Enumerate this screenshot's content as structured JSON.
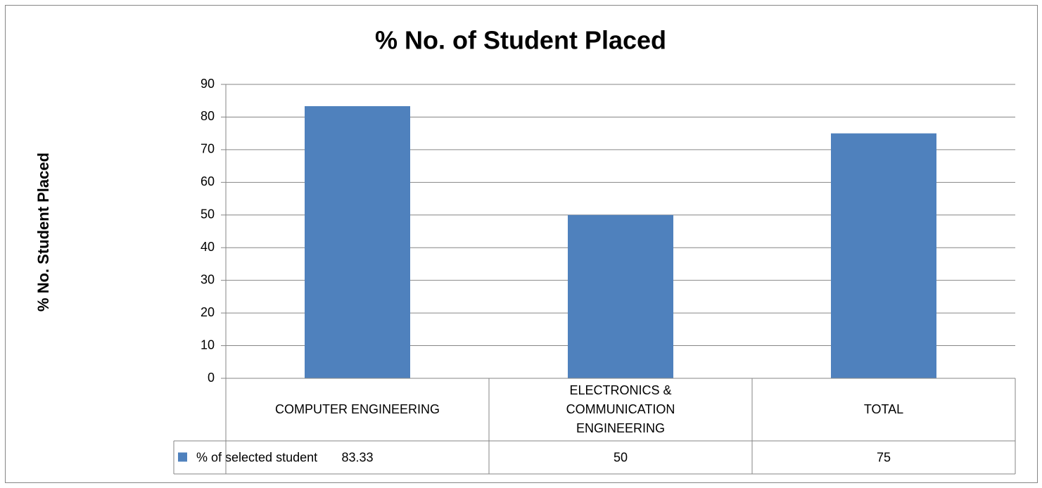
{
  "chart_data": {
    "type": "bar",
    "title": "% No. of Student Placed",
    "y_axis_label": "% No. Student Placed",
    "categories": [
      "COMPUTER ENGINEERING",
      "ELECTRONICS & COMMUNICATION ENGINEERING",
      "TOTAL"
    ],
    "series": [
      {
        "name": "% of selected student",
        "color": "#4f81bd",
        "values": [
          83.33,
          50,
          75
        ]
      }
    ],
    "ylim": [
      0,
      90
    ],
    "yticks": [
      0,
      10,
      20,
      30,
      40,
      50,
      60,
      70,
      80,
      90
    ],
    "grid": true,
    "data_table": true
  }
}
